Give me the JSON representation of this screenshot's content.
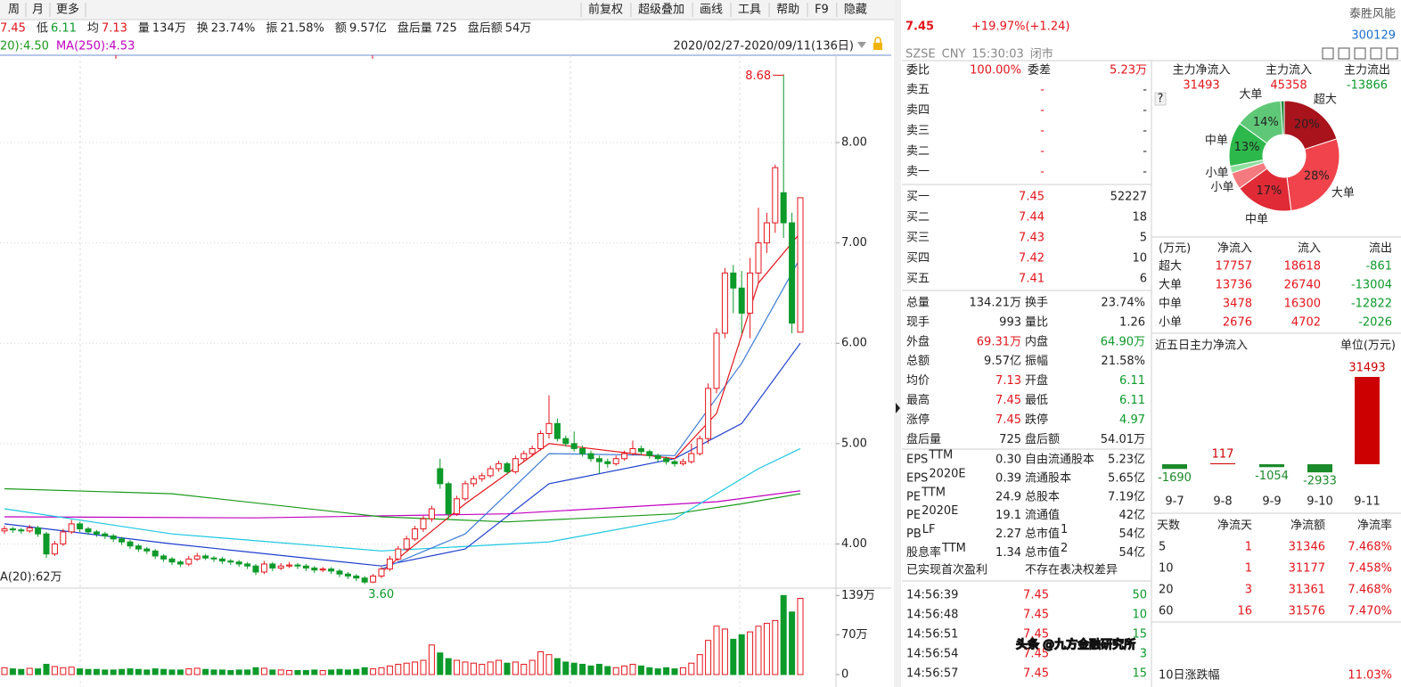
{
  "toolbar": {
    "left": [
      "周",
      "月",
      "更多"
    ],
    "right": [
      "前复权",
      "超级叠加",
      "画线",
      "工具",
      "帮助",
      "F9",
      "隐藏"
    ]
  },
  "info_bar": [
    {
      "value": "7.45",
      "color": "#e4141b"
    },
    {
      "label": "低",
      "value": "6.11",
      "color": "#0c9a2a"
    },
    {
      "label": "均",
      "value": "7.13",
      "color": "#e4141b"
    },
    {
      "label": "量",
      "value": "134万",
      "color": "#222222"
    },
    {
      "label": "换",
      "value": "23.74%",
      "color": "#222222"
    },
    {
      "label": "振",
      "value": "21.58%",
      "color": "#222222"
    },
    {
      "label": "额",
      "value": "9.57亿",
      "color": "#222222"
    },
    {
      "label": "盘后量",
      "value": "725",
      "color": "#222222"
    },
    {
      "label": "盘后额",
      "value": "54万",
      "color": "#222222"
    }
  ],
  "ma_legend": [
    {
      "text": "20):4.50",
      "color": "#1a9a1a"
    },
    {
      "text": "MA(250):4.53",
      "color": "#c000c0"
    }
  ],
  "date_range": "2020/02/27-2020/09/11(136日)",
  "chart_data": {
    "type": "candlestick",
    "colors": {
      "up": "#e4141b",
      "down": "#0c9a2a"
    },
    "open": [
      4.13,
      4.15,
      4.14,
      4.13,
      4.16,
      4.1,
      3.9,
      4.0,
      4.12,
      4.2,
      4.15,
      4.12,
      4.1,
      4.08,
      4.05,
      4.02,
      3.98,
      3.95,
      3.93,
      3.88,
      3.85,
      3.82,
      3.8,
      3.85,
      3.88,
      3.86,
      3.85,
      3.83,
      3.82,
      3.8,
      3.78,
      3.72,
      3.8,
      3.76,
      3.78,
      3.79,
      3.78,
      3.76,
      3.74,
      3.75,
      3.73,
      3.7,
      3.68,
      3.66,
      3.62,
      3.68,
      3.75,
      3.85,
      3.95,
      4.05,
      4.15,
      4.25,
      4.75,
      4.6,
      4.3,
      4.45,
      4.6,
      4.65,
      4.68,
      4.75,
      4.8,
      4.72,
      4.85,
      4.9,
      4.95,
      5.1,
      5.2,
      5.05,
      5.0,
      4.95,
      4.9,
      4.85,
      4.82,
      4.8,
      4.85,
      4.9,
      4.95,
      4.92,
      4.88,
      4.85,
      4.82,
      4.8,
      4.82,
      4.9,
      5.05,
      5.55,
      6.1,
      6.7,
      6.55,
      6.3,
      6.7,
      7.0,
      7.2,
      7.5,
      7.2,
      6.11
    ],
    "high": [
      4.18,
      4.17,
      4.16,
      4.19,
      4.18,
      4.12,
      4.03,
      4.15,
      4.24,
      4.22,
      4.17,
      4.14,
      4.12,
      4.1,
      4.07,
      4.04,
      4.0,
      3.97,
      3.95,
      3.9,
      3.87,
      3.84,
      3.88,
      3.91,
      3.9,
      3.88,
      3.87,
      3.85,
      3.84,
      3.82,
      3.8,
      3.83,
      3.82,
      3.81,
      3.82,
      3.81,
      3.8,
      3.78,
      3.77,
      3.77,
      3.75,
      3.72,
      3.7,
      3.68,
      3.7,
      3.77,
      3.88,
      3.98,
      4.08,
      4.18,
      4.28,
      4.38,
      4.85,
      4.62,
      4.48,
      4.63,
      4.68,
      4.71,
      4.78,
      4.83,
      4.82,
      4.88,
      4.93,
      4.98,
      5.13,
      5.48,
      5.25,
      5.08,
      5.12,
      4.98,
      4.93,
      4.88,
      4.85,
      4.88,
      4.93,
      5.03,
      4.98,
      4.94,
      4.9,
      4.87,
      4.84,
      4.85,
      5.0,
      5.08,
      5.6,
      6.15,
      6.75,
      6.78,
      6.72,
      6.85,
      7.35,
      7.3,
      7.78,
      8.68,
      7.3,
      7.45
    ],
    "low": [
      4.1,
      4.11,
      4.1,
      4.11,
      4.07,
      3.86,
      3.88,
      3.98,
      4.1,
      4.12,
      4.09,
      4.07,
      4.05,
      4.02,
      3.99,
      3.95,
      3.92,
      3.9,
      3.85,
      3.82,
      3.79,
      3.77,
      3.78,
      3.83,
      3.84,
      3.82,
      3.8,
      3.79,
      3.77,
      3.75,
      3.69,
      3.7,
      3.73,
      3.74,
      3.76,
      3.75,
      3.73,
      3.71,
      3.72,
      3.7,
      3.67,
      3.65,
      3.63,
      3.6,
      3.61,
      3.66,
      3.73,
      3.83,
      3.93,
      4.03,
      4.12,
      4.22,
      4.55,
      4.25,
      4.28,
      4.43,
      4.57,
      4.62,
      4.66,
      4.72,
      4.69,
      4.7,
      4.82,
      4.87,
      4.93,
      5.05,
      5.02,
      4.97,
      4.92,
      4.87,
      4.82,
      4.7,
      4.76,
      4.78,
      4.83,
      4.88,
      4.89,
      4.85,
      4.82,
      4.79,
      4.77,
      4.78,
      4.8,
      4.88,
      5.0,
      5.5,
      6.05,
      6.3,
      6.1,
      6.05,
      6.6,
      6.9,
      7.1,
      7.05,
      6.1,
      6.11
    ],
    "close": [
      4.15,
      4.14,
      4.13,
      4.16,
      4.1,
      3.9,
      4.0,
      4.12,
      4.2,
      4.15,
      4.12,
      4.1,
      4.08,
      4.05,
      4.02,
      3.98,
      3.95,
      3.93,
      3.88,
      3.85,
      3.82,
      3.8,
      3.85,
      3.88,
      3.86,
      3.85,
      3.83,
      3.82,
      3.8,
      3.78,
      3.72,
      3.8,
      3.76,
      3.78,
      3.79,
      3.78,
      3.76,
      3.74,
      3.75,
      3.73,
      3.7,
      3.68,
      3.66,
      3.62,
      3.68,
      3.75,
      3.85,
      3.95,
      4.05,
      4.15,
      4.25,
      4.35,
      4.6,
      4.3,
      4.45,
      4.6,
      4.65,
      4.68,
      4.75,
      4.8,
      4.72,
      4.85,
      4.9,
      4.95,
      5.1,
      5.2,
      5.05,
      5.0,
      4.95,
      4.9,
      4.85,
      4.82,
      4.8,
      4.85,
      4.9,
      4.95,
      4.92,
      4.88,
      4.85,
      4.82,
      4.8,
      4.82,
      4.9,
      5.05,
      5.55,
      6.1,
      6.7,
      6.55,
      6.3,
      6.7,
      7.0,
      7.2,
      7.75,
      7.2,
      6.2,
      7.45
    ],
    "ylim": [
      3.56,
      8.87
    ],
    "yticks": [
      {
        "value": 4,
        "label": "4.00"
      },
      {
        "value": 5,
        "label": "5.00"
      },
      {
        "value": 6,
        "label": "6.00"
      },
      {
        "value": 7,
        "label": "7.00"
      },
      {
        "value": 8,
        "label": "8.00"
      }
    ],
    "grid": true,
    "annotations": [
      {
        "text": "8.68",
        "x": 93,
        "at": "high",
        "color": "#e4141b"
      },
      {
        "text": "3.60",
        "x": 43,
        "at": "low",
        "color": "#0c9a2a"
      }
    ],
    "ma_lines": [
      {
        "color": "#c000c0",
        "x": [
          0,
          30,
          60,
          85,
          95
        ],
        "values": [
          4.27,
          4.26,
          4.3,
          4.42,
          4.53
        ]
      },
      {
        "color": "#1a9a1a",
        "x": [
          0,
          20,
          45,
          60,
          80,
          88,
          95
        ],
        "values": [
          4.55,
          4.5,
          4.27,
          4.22,
          4.3,
          4.4,
          4.5
        ]
      },
      {
        "color": "#19c6e0",
        "x": [
          0,
          20,
          45,
          65,
          80,
          90,
          95
        ],
        "values": [
          4.35,
          4.1,
          3.93,
          4.02,
          4.25,
          4.75,
          4.95
        ]
      },
      {
        "color": "#1f3fcf",
        "x": [
          0,
          20,
          45,
          55,
          65,
          80,
          88,
          95
        ],
        "values": [
          4.2,
          4.0,
          3.78,
          3.95,
          4.6,
          4.85,
          5.2,
          6.0
        ]
      },
      {
        "color": "#3d7bd6",
        "x": [
          45,
          55,
          65,
          80,
          88,
          95
        ],
        "values": [
          3.75,
          4.1,
          4.9,
          4.88,
          5.8,
          6.85
        ]
      },
      {
        "color": "#e4141b",
        "x": [
          45,
          55,
          65,
          80,
          85,
          90,
          95
        ],
        "values": [
          3.72,
          4.4,
          5.0,
          4.85,
          5.3,
          6.6,
          7.1
        ]
      }
    ],
    "volume": {
      "label": "A(20):62万",
      "values": [
        12,
        10,
        9,
        11,
        10,
        18,
        14,
        12,
        13,
        10,
        9,
        9,
        8,
        8,
        9,
        10,
        9,
        8,
        10,
        9,
        8,
        8,
        10,
        11,
        9,
        8,
        8,
        7,
        8,
        8,
        12,
        11,
        8,
        8,
        7,
        7,
        7,
        8,
        7,
        8,
        9,
        8,
        9,
        12,
        10,
        12,
        15,
        18,
        20,
        22,
        25,
        52,
        38,
        28,
        25,
        22,
        20,
        18,
        22,
        25,
        20,
        22,
        18,
        25,
        40,
        35,
        28,
        22,
        20,
        18,
        15,
        18,
        14,
        12,
        15,
        18,
        15,
        12,
        10,
        12,
        10,
        12,
        20,
        35,
        60,
        85,
        80,
        62,
        70,
        75,
        85,
        90,
        95,
        139,
        110,
        134
      ],
      "ylim": [
        0,
        152
      ],
      "yticks": [
        0,
        {
          "value": 70,
          "label": "70万"
        },
        {
          "value": 139,
          "label": "139万"
        }
      ]
    }
  },
  "quote": {
    "price": "7.45",
    "change": "+19.97%(+1.24)",
    "name": "泰胜风能",
    "code": "300129",
    "meta": [
      "SZSE",
      "CNY",
      "15:30:03",
      "闭市"
    ]
  },
  "order_book": {
    "summary": [
      "委比",
      "100.00%",
      "委差",
      "5.23万"
    ],
    "asks": [
      [
        "卖五",
        "-",
        "-"
      ],
      [
        "卖四",
        "-",
        "-"
      ],
      [
        "卖三",
        "-",
        "-"
      ],
      [
        "卖二",
        "-",
        "-"
      ],
      [
        "卖一",
        "-",
        "-"
      ]
    ],
    "bids": [
      [
        "买一",
        "7.45",
        "52227"
      ],
      [
        "买二",
        "7.44",
        "18"
      ],
      [
        "买三",
        "7.43",
        "5"
      ],
      [
        "买四",
        "7.42",
        "10"
      ],
      [
        "买五",
        "7.41",
        "6"
      ]
    ]
  },
  "stats": [
    {
      "cells": [
        "总量",
        "134.21万",
        "换手",
        "23.74%"
      ],
      "colors": [
        "#222222",
        "#222222"
      ]
    },
    {
      "cells": [
        "现手",
        "993",
        "量比",
        "1.26"
      ],
      "colors": [
        "#222222",
        "#222222"
      ]
    },
    {
      "cells": [
        "外盘",
        "69.31万",
        "内盘",
        "64.90万"
      ],
      "colors": [
        "#e4141b",
        "#0c9a2a"
      ]
    },
    {
      "cells": [
        "总额",
        "9.57亿",
        "振幅",
        "21.58%"
      ],
      "colors": [
        "#222222",
        "#222222"
      ]
    },
    {
      "cells": [
        "均价",
        "7.13",
        "开盘",
        "6.11"
      ],
      "colors": [
        "#e4141b",
        "#0c9a2a"
      ]
    },
    {
      "cells": [
        "最高",
        "7.45",
        "最低",
        "6.11"
      ],
      "colors": [
        "#e4141b",
        "#0c9a2a"
      ]
    },
    {
      "cells": [
        "涨停",
        "7.45",
        "跌停",
        "4.97"
      ],
      "colors": [
        "#e4141b",
        "#0c9a2a"
      ]
    },
    {
      "cells": [
        "盘后量",
        "725",
        "盘后额",
        "54.01万"
      ],
      "colors": [
        "#222222",
        "#222222"
      ]
    }
  ],
  "fundamentals": [
    {
      "label": "EPS",
      "sup": "TTM",
      "value": "0.30",
      "label2": "自由流通股本",
      "value2": "5.23亿"
    },
    {
      "label": "EPS",
      "sup": "2020E",
      "value": "0.39",
      "label2": "流通股本",
      "value2": "5.65亿"
    },
    {
      "label": "PE",
      "sup": "TTM",
      "value": "24.9",
      "label2": "总股本",
      "value2": "7.19亿"
    },
    {
      "label": "PE",
      "sup": "2020E",
      "value": "19.1",
      "label2": "流通值",
      "value2": "42亿"
    },
    {
      "label": "PB",
      "sup": "LF",
      "value": "2.27",
      "label2": "总市值",
      "sup2": "1",
      "value2": "54亿"
    },
    {
      "label": "股息率",
      "sup": "TTM",
      "value": "1.34",
      "label2": "总市值",
      "sup2": "2",
      "value2": "54亿"
    }
  ],
  "notes": [
    "已实现首次盈利",
    "不存在表决权差异"
  ],
  "trades": [
    [
      "14:56:39",
      "7.45",
      "50"
    ],
    [
      "14:56:48",
      "7.45",
      "10"
    ],
    [
      "14:56:51",
      "7.45",
      "15"
    ],
    [
      "14:56:54",
      "7.45",
      "3"
    ],
    [
      "14:56:57",
      "7.45",
      "15"
    ]
  ],
  "fund_flow": {
    "headers": [
      "主力净流入",
      "主力流入",
      "主力流出"
    ],
    "values": [
      "31493",
      "45358",
      "-13866"
    ],
    "value_colors": [
      "#e4141b",
      "#e4141b",
      "#0c9a2a"
    ],
    "help": "?",
    "pie": {
      "type": "pie",
      "labels": [
        "超大",
        "大单",
        "中单",
        "小单",
        "小单",
        "中单",
        "大单",
        null
      ],
      "values": [
        20,
        28,
        17,
        5,
        2,
        13,
        14,
        1
      ],
      "value_labels": [
        "20%",
        "28%",
        "17%",
        null,
        null,
        "13%",
        "14%",
        null
      ],
      "colors": [
        "#a8131c",
        "#f0434b",
        "#e02a35",
        "#f47a80",
        "#8fdf9f",
        "#2db84c",
        "#5fc878",
        "#1f8c3b"
      ]
    },
    "table": {
      "headers": [
        "(万元)",
        "净流入",
        "流入",
        "流出"
      ],
      "rows": [
        [
          "超大",
          "17757",
          "18618",
          "-861"
        ],
        [
          "大单",
          "13736",
          "26740",
          "-13004"
        ],
        [
          "中单",
          "3478",
          "16300",
          "-12822"
        ],
        [
          "小单",
          "2676",
          "4702",
          "-2026"
        ]
      ],
      "column_colors": [
        "#222222",
        "#e4141b",
        "#e4141b",
        "#0c9a2a"
      ]
    },
    "five_day": {
      "type": "bar",
      "title": "近五日主力净流入",
      "unit": "单位(万元)",
      "categories": [
        "9-7",
        "9-8",
        "9-9",
        "9-10",
        "9-11"
      ],
      "values": [
        -1690,
        117,
        -1054,
        -2933,
        31493
      ],
      "colors": {
        "positive": "#cc0000",
        "negative": "#1a8a2a"
      }
    },
    "periods": {
      "headers": [
        "天数",
        "净流天",
        "净流额",
        "净流率"
      ],
      "rows": [
        [
          "5",
          "1",
          "31346",
          "7.468%"
        ],
        [
          "10",
          "1",
          "31177",
          "7.458%"
        ],
        [
          "20",
          "3",
          "31361",
          "7.468%"
        ],
        [
          "60",
          "16",
          "31576",
          "7.470%"
        ]
      ],
      "column_colors": [
        "#222222",
        "#e4141b",
        "#e4141b",
        "#e4141b"
      ]
    },
    "tail": [
      "10日涨跌幅",
      "11.03%"
    ]
  },
  "watermark": "头条 @九方金融研究所"
}
